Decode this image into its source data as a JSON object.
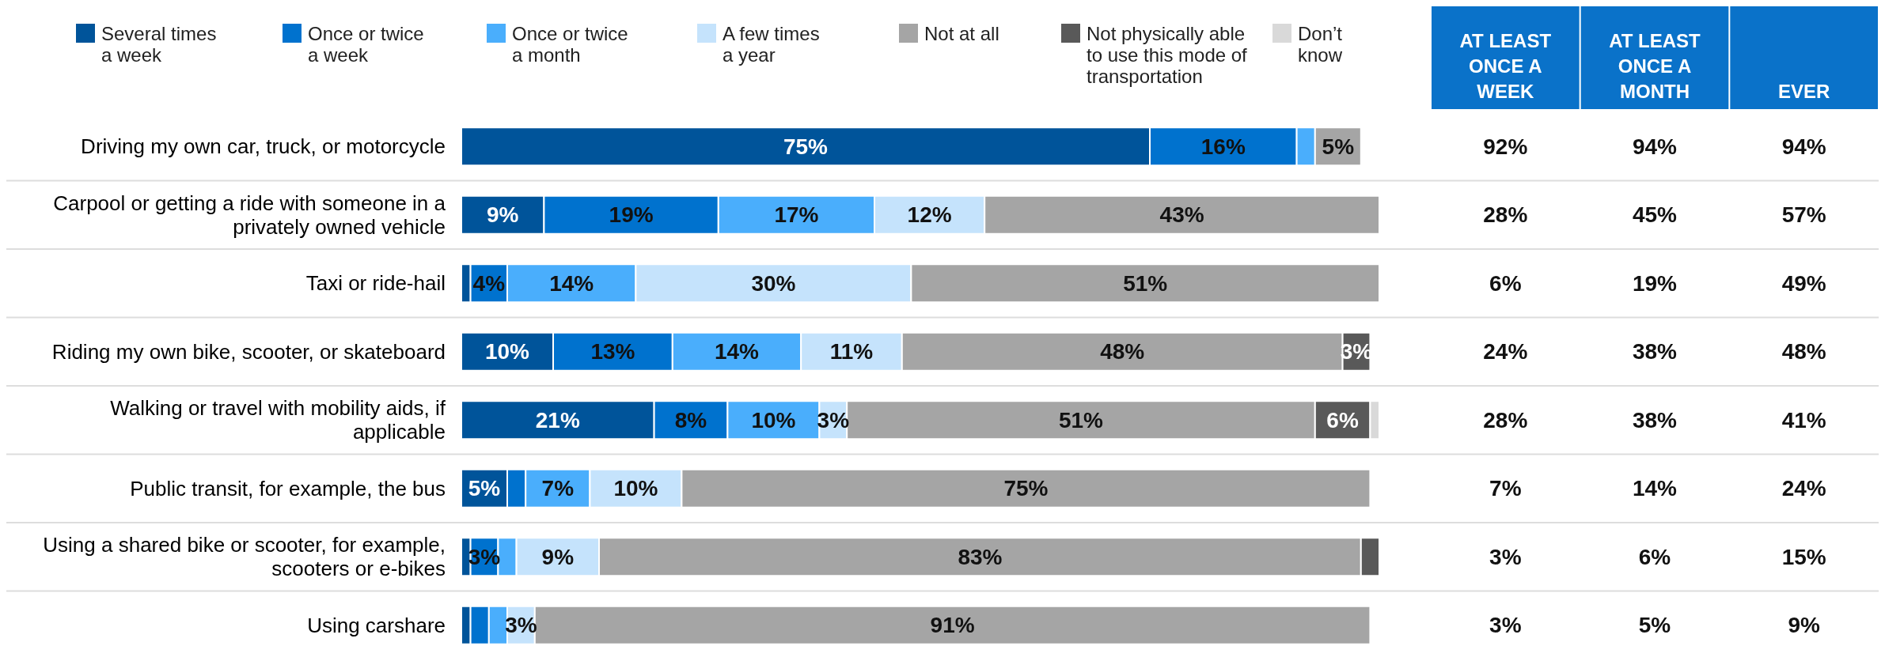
{
  "chart_data": [
    {
      "type": "bar",
      "orientation": "horizontal",
      "stacked": true,
      "legend": "top",
      "categories": [
        "Driving my own car, truck, or motorcycle",
        "Carpool or getting a ride with someone in a privately owned vehicle",
        "Taxi or ride-hail",
        "Riding my own bike, scooter, or skateboard",
        "Walking or travel with mobility aids, if applicable",
        "Public transit, for example, the bus",
        "Using a shared bike or scooter, for example, scooters or e-bikes",
        "Using carshare"
      ],
      "series": [
        {
          "name": "Several times a week",
          "color": "#00549a",
          "values": [
            75,
            9,
            1,
            10,
            21,
            5,
            1,
            1
          ],
          "value_labels": [
            "75%",
            "9%",
            null,
            "10%",
            "21%",
            "5%",
            null,
            null
          ]
        },
        {
          "name": "Once or twice a week",
          "color": "#0072ce",
          "values": [
            16,
            19,
            4,
            13,
            8,
            2,
            3,
            2
          ],
          "value_labels": [
            "16%",
            "19%",
            "4%",
            "13%",
            "8%",
            null,
            "3%",
            null
          ]
        },
        {
          "name": "Once or twice a month",
          "color": "#4aaefc",
          "values": [
            2,
            17,
            14,
            14,
            10,
            7,
            2,
            2
          ],
          "value_labels": [
            null,
            "17%",
            "14%",
            "14%",
            "10%",
            "7%",
            null,
            null
          ]
        },
        {
          "name": "A few times a year",
          "color": "#c5e3fc",
          "values": [
            0,
            12,
            30,
            11,
            3,
            10,
            9,
            3
          ],
          "value_labels": [
            null,
            "12%",
            "30%",
            "11%",
            "3%",
            "10%",
            "9%",
            "3%"
          ]
        },
        {
          "name": "Not at all",
          "color": "#a5a5a5",
          "values": [
            5,
            43,
            51,
            48,
            51,
            75,
            83,
            91
          ],
          "value_labels": [
            "5%",
            "43%",
            "51%",
            "48%",
            "51%",
            "75%",
            "83%",
            "91%"
          ]
        },
        {
          "name": "Not physically able to use this mode of transportation",
          "color": "#595959",
          "values": [
            0,
            0,
            0,
            3,
            6,
            0,
            2,
            0
          ],
          "value_labels": [
            null,
            null,
            null,
            "3%",
            "6%",
            null,
            null,
            null
          ]
        },
        {
          "name": "Don’t know",
          "color": "#d9d9d9",
          "values": [
            0,
            0,
            0,
            0,
            1,
            0,
            0,
            0
          ],
          "value_labels": [
            null,
            null,
            null,
            null,
            null,
            null,
            null,
            null
          ]
        }
      ]
    },
    {
      "type": "heatmap",
      "categories": [
        "AT LEAST ONCE A WEEK",
        "AT LEAST ONCE A MONTH",
        "EVER"
      ],
      "y_categories": [
        null,
        null,
        null,
        null,
        null,
        null,
        null,
        null
      ],
      "cells": [
        [
          92,
          94,
          94
        ],
        [
          28,
          45,
          57
        ],
        [
          6,
          19,
          49
        ],
        [
          24,
          38,
          48
        ],
        [
          28,
          38,
          41
        ],
        [
          7,
          14,
          24
        ],
        [
          3,
          6,
          15
        ],
        [
          3,
          5,
          9
        ]
      ],
      "cell_labels": [
        [
          "92%",
          "94%",
          "94%"
        ],
        [
          "28%",
          "45%",
          "57%"
        ],
        [
          "6%",
          "19%",
          "49%"
        ],
        [
          "24%",
          "38%",
          "48%"
        ],
        [
          "28%",
          "38%",
          "41%"
        ],
        [
          "7%",
          "14%",
          "24%"
        ],
        [
          "3%",
          "6%",
          "15%"
        ],
        [
          "3%",
          "5%",
          "9%"
        ]
      ]
    }
  ]
}
